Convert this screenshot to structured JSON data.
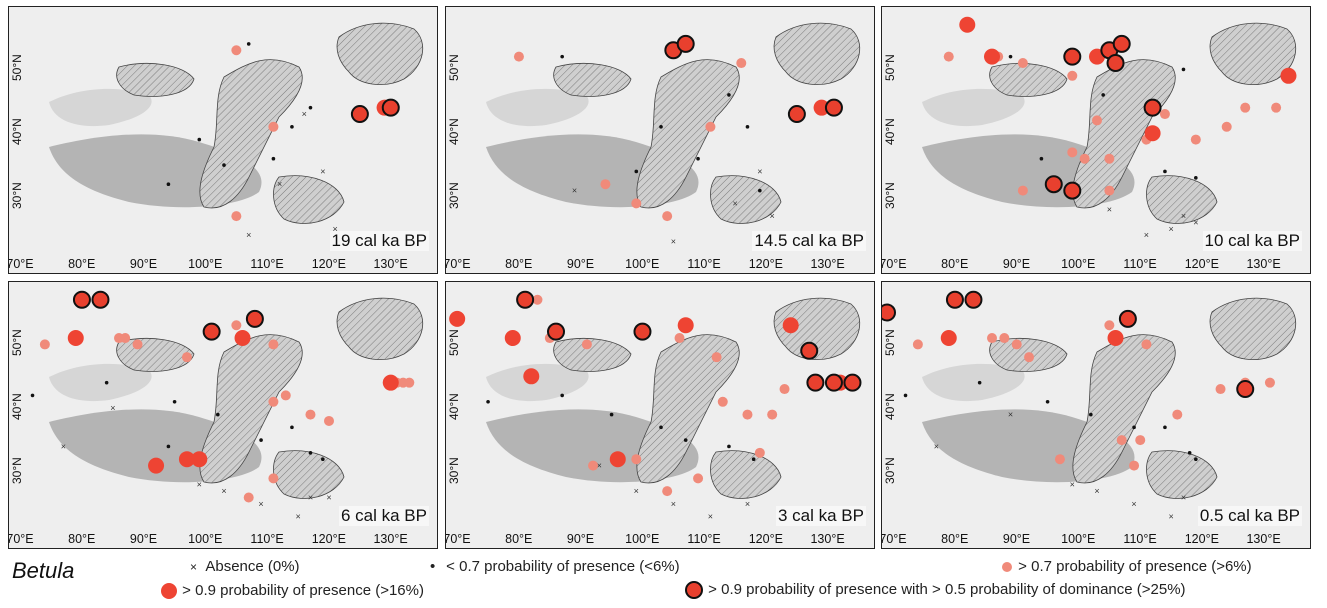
{
  "panels": [
    {
      "label": "19 cal ka BP"
    },
    {
      "label": "14.5 cal ka BP"
    },
    {
      "label": "10 cal ka BP"
    },
    {
      "label": "6 cal ka BP"
    },
    {
      "label": "3 cal ka BP"
    },
    {
      "label": "0.5 cal ka BP"
    }
  ],
  "x_ticks": [
    "70°E",
    "80°E",
    "90°E",
    "100°E",
    "110°E",
    "120°E",
    "130°E"
  ],
  "y_ticks": [
    "50°N",
    "40°N",
    "30°N"
  ],
  "legend": {
    "genus": "Betula",
    "absence": "Absence (0%)",
    "low": "< 0.7 probability of presence (<6%)",
    "mid": "> 0.7 probability of presence (>6%)",
    "high": "> 0.9 probability of presence (>16%)",
    "dominant": "> 0.9 probability of presence with > 0.5 probability of dominance (>25%)"
  },
  "colors": {
    "mid": "#f08a7a",
    "high": "#ee4433",
    "dominant_fill": "#e8402e",
    "dominant_stroke": "#111111"
  },
  "map_data": {
    "type": "point_map",
    "marker_types": [
      "absence",
      "low",
      "mid",
      "high",
      "dominant"
    ],
    "panels": [
      {
        "period": "19 cal ka BP",
        "mid": [
          [
            106,
            52
          ],
          [
            112,
            40
          ],
          [
            106,
            26
          ]
        ],
        "high": [
          [
            130,
            43
          ]
        ],
        "dominant": [
          [
            126,
            42
          ],
          [
            131,
            43
          ]
        ],
        "low": [
          [
            108,
            53
          ],
          [
            100,
            38
          ],
          [
            104,
            34
          ],
          [
            112,
            35
          ],
          [
            95,
            31
          ],
          [
            115,
            40
          ],
          [
            118,
            43
          ]
        ],
        "absence": [
          [
            120,
            33
          ],
          [
            122,
            24
          ],
          [
            108,
            23
          ],
          [
            117,
            42
          ],
          [
            113,
            31
          ]
        ]
      },
      {
        "period": "14.5 cal ka BP",
        "mid": [
          [
            81,
            51
          ],
          [
            117,
            50
          ],
          [
            112,
            40
          ],
          [
            95,
            31
          ],
          [
            100,
            28
          ],
          [
            105,
            26
          ]
        ],
        "high": [
          [
            130,
            43
          ]
        ],
        "dominant": [
          [
            106,
            52
          ],
          [
            108,
            53
          ],
          [
            126,
            42
          ],
          [
            132,
            43
          ]
        ],
        "low": [
          [
            88,
            51
          ],
          [
            115,
            45
          ],
          [
            104,
            40
          ],
          [
            100,
            33
          ],
          [
            110,
            35
          ],
          [
            118,
            40
          ],
          [
            120,
            30
          ]
        ],
        "absence": [
          [
            120,
            33
          ],
          [
            122,
            26
          ],
          [
            106,
            22
          ],
          [
            116,
            28
          ],
          [
            90,
            30
          ]
        ]
      },
      {
        "period": "10 cal ka BP",
        "mid": [
          [
            80,
            51
          ],
          [
            88,
            51
          ],
          [
            92,
            50
          ],
          [
            100,
            48
          ],
          [
            104,
            41
          ],
          [
            112,
            38
          ],
          [
            115,
            42
          ],
          [
            125,
            40
          ],
          [
            100,
            36
          ],
          [
            102,
            35
          ],
          [
            106,
            35
          ],
          [
            106,
            30
          ],
          [
            92,
            30
          ],
          [
            120,
            38
          ],
          [
            128,
            43
          ],
          [
            133,
            43
          ]
        ],
        "high": [
          [
            87,
            51
          ],
          [
            83,
            56
          ],
          [
            104,
            51
          ],
          [
            113,
            39
          ],
          [
            135,
            48
          ]
        ],
        "dominant": [
          [
            100,
            51
          ],
          [
            106,
            52
          ],
          [
            108,
            53
          ],
          [
            107,
            50
          ],
          [
            113,
            43
          ],
          [
            97,
            31
          ],
          [
            100,
            30
          ]
        ],
        "low": [
          [
            90,
            51
          ],
          [
            118,
            49
          ],
          [
            105,
            45
          ],
          [
            95,
            35
          ],
          [
            115,
            33
          ],
          [
            120,
            32
          ]
        ],
        "absence": [
          [
            118,
            26
          ],
          [
            120,
            25
          ],
          [
            116,
            24
          ],
          [
            112,
            23
          ],
          [
            106,
            27
          ]
        ]
      },
      {
        "period": "6 cal ka BP",
        "mid": [
          [
            75,
            49
          ],
          [
            87,
            50
          ],
          [
            88,
            50
          ],
          [
            90,
            49
          ],
          [
            98,
            47
          ],
          [
            106,
            52
          ],
          [
            112,
            49
          ],
          [
            112,
            40
          ],
          [
            114,
            41
          ],
          [
            118,
            38
          ],
          [
            121,
            37
          ],
          [
            108,
            25
          ],
          [
            112,
            28
          ],
          [
            132,
            43
          ],
          [
            133,
            43
          ],
          [
            134,
            43
          ]
        ],
        "high": [
          [
            80,
            50
          ],
          [
            93,
            30
          ],
          [
            98,
            31
          ],
          [
            100,
            31
          ],
          [
            107,
            50
          ],
          [
            131,
            43
          ]
        ],
        "dominant": [
          [
            81,
            56
          ],
          [
            84,
            56
          ],
          [
            102,
            51
          ],
          [
            109,
            53
          ]
        ],
        "low": [
          [
            73,
            41
          ],
          [
            85,
            43
          ],
          [
            96,
            40
          ],
          [
            103,
            38
          ],
          [
            110,
            34
          ],
          [
            115,
            36
          ],
          [
            118,
            32
          ],
          [
            120,
            31
          ],
          [
            95,
            33
          ]
        ],
        "absence": [
          [
            78,
            33
          ],
          [
            86,
            39
          ],
          [
            100,
            27
          ],
          [
            104,
            26
          ],
          [
            110,
            24
          ],
          [
            116,
            22
          ],
          [
            118,
            25
          ],
          [
            121,
            25
          ]
        ]
      },
      {
        "period": "3 cal ka BP",
        "mid": [
          [
            82,
            56
          ],
          [
            84,
            56
          ],
          [
            86,
            50
          ],
          [
            92,
            49
          ],
          [
            107,
            50
          ],
          [
            113,
            47
          ],
          [
            114,
            40
          ],
          [
            118,
            38
          ],
          [
            122,
            38
          ],
          [
            124,
            42
          ],
          [
            100,
            31
          ],
          [
            105,
            26
          ],
          [
            110,
            28
          ],
          [
            120,
            32
          ],
          [
            93,
            30
          ]
        ],
        "high": [
          [
            71,
            53
          ],
          [
            80,
            50
          ],
          [
            83,
            44
          ],
          [
            97,
            31
          ],
          [
            108,
            52
          ],
          [
            125,
            52
          ],
          [
            129,
            43
          ],
          [
            133,
            43
          ]
        ],
        "dominant": [
          [
            82,
            56
          ],
          [
            87,
            51
          ],
          [
            101,
            51
          ],
          [
            128,
            48
          ],
          [
            129,
            43
          ],
          [
            132,
            43
          ],
          [
            135,
            43
          ]
        ],
        "low": [
          [
            76,
            40
          ],
          [
            88,
            41
          ],
          [
            96,
            38
          ],
          [
            104,
            36
          ],
          [
            108,
            34
          ],
          [
            115,
            33
          ],
          [
            119,
            31
          ]
        ],
        "absence": [
          [
            94,
            30
          ],
          [
            100,
            26
          ],
          [
            106,
            24
          ],
          [
            112,
            22
          ],
          [
            118,
            24
          ]
        ]
      },
      {
        "period": "0.5 cal ka BP",
        "mid": [
          [
            75,
            49
          ],
          [
            87,
            50
          ],
          [
            89,
            50
          ],
          [
            91,
            49
          ],
          [
            93,
            47
          ],
          [
            106,
            52
          ],
          [
            112,
            49
          ],
          [
            117,
            38
          ],
          [
            124,
            42
          ],
          [
            128,
            43
          ],
          [
            132,
            43
          ],
          [
            111,
            34
          ],
          [
            108,
            34
          ],
          [
            98,
            31
          ],
          [
            110,
            30
          ]
        ],
        "high": [
          [
            80,
            50
          ],
          [
            107,
            50
          ]
        ],
        "dominant": [
          [
            70,
            54
          ],
          [
            81,
            56
          ],
          [
            84,
            56
          ],
          [
            109,
            53
          ],
          [
            128,
            42
          ]
        ],
        "low": [
          [
            73,
            41
          ],
          [
            85,
            43
          ],
          [
            96,
            40
          ],
          [
            103,
            38
          ],
          [
            110,
            36
          ],
          [
            115,
            36
          ],
          [
            119,
            32
          ],
          [
            120,
            31
          ]
        ],
        "absence": [
          [
            78,
            33
          ],
          [
            90,
            38
          ],
          [
            100,
            27
          ],
          [
            104,
            26
          ],
          [
            110,
            24
          ],
          [
            116,
            22
          ],
          [
            118,
            25
          ]
        ]
      }
    ]
  }
}
